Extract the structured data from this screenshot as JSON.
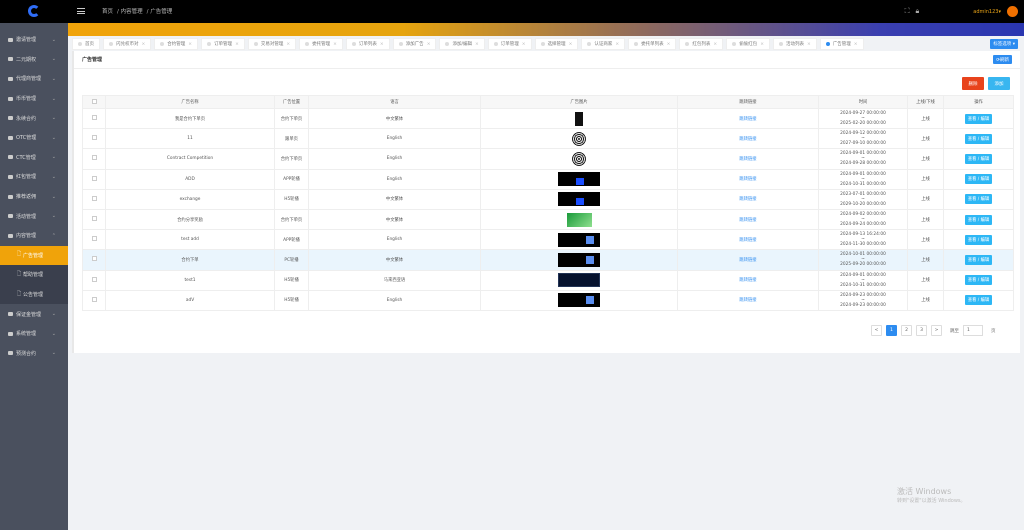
{
  "header": {
    "breadcrumb": [
      "首页",
      "/ 内容管理",
      "/ 广告管理"
    ],
    "user": "admin123▾",
    "accent": "#f0a30a"
  },
  "sidebar": {
    "items": [
      {
        "label": "邀请管理",
        "chevron": "⌄"
      },
      {
        "label": "二元期权",
        "chevron": "⌄"
      },
      {
        "label": "代理商管理",
        "chevron": "⌄"
      },
      {
        "label": "币币管理",
        "chevron": "⌄"
      },
      {
        "label": "永续合约",
        "chevron": "⌄"
      },
      {
        "label": "OTC管理",
        "chevron": "⌄"
      },
      {
        "label": "CTC管理",
        "chevron": "⌄"
      },
      {
        "label": "红包管理",
        "chevron": "⌄"
      },
      {
        "label": "推荐返佣",
        "chevron": "⌄"
      },
      {
        "label": "活动管理",
        "chevron": "⌄"
      },
      {
        "label": "内容管理",
        "chevron": "⌃"
      },
      {
        "label": "广告管理",
        "sub": true,
        "active": true
      },
      {
        "label": "帮助管理",
        "sub": true
      },
      {
        "label": "公告管理",
        "sub": true
      },
      {
        "label": "保证金管理",
        "chevron": "⌄"
      },
      {
        "label": "系统管理",
        "chevron": "⌄"
      },
      {
        "label": "预测合约",
        "chevron": "⌄"
      }
    ]
  },
  "tabs": [
    "首页",
    "闪兑权币对",
    "合约管理",
    "订单管理",
    "交易对管理",
    "委托管理",
    "订单列表",
    "添加广告",
    "添加/编辑",
    "订单管理",
    "选择管理",
    "认证商家",
    "委托单列表",
    "红包列表",
    "偷偷红包",
    "活动列表",
    "广告管理"
  ],
  "tab_options": "标签选项 ▾",
  "panel": {
    "title": "广告管理",
    "refresh": "⟳刷新",
    "delete": "删除",
    "add": "添加"
  },
  "table": {
    "headers": [
      "广告名称",
      "广告位置",
      "语言",
      "广告图片",
      "跳转链接",
      "时间",
      "上线/下线",
      "操作"
    ],
    "rows": [
      {
        "name": "我是合约下单页",
        "position": "合约下单页",
        "lang": "中文繁体",
        "img": "phone",
        "link": "跳转链接",
        "start": "2024-09-27 00:00:00",
        "end": "2025-02-20 00:00:00",
        "status": "上线",
        "op": "查看 / 编辑"
      },
      {
        "name": "11",
        "position": "跟单页",
        "lang": "English",
        "img": "circle",
        "link": "跳转链接",
        "start": "2024-09-12 00:00:00",
        "end": "2027-09-10 00:00:00",
        "status": "上线",
        "op": "查看 / 编辑"
      },
      {
        "name": "Contract Competition",
        "position": "合约下单页",
        "lang": "English",
        "img": "circle",
        "link": "跳转链接",
        "start": "2024-09-01 00:00:00",
        "end": "2024-09-28 00:00:00",
        "status": "上线",
        "op": "查看 / 编辑"
      },
      {
        "name": "ADD",
        "position": "APP轮播",
        "lang": "English",
        "img": "dark",
        "link": "跳转链接",
        "start": "2024-09-01 00:00:00",
        "end": "2024-10-31 00:00:00",
        "status": "上线",
        "op": "查看 / 编辑"
      },
      {
        "name": "exchange",
        "position": "H5轮播",
        "lang": "中文繁体",
        "img": "dark",
        "link": "跳转链接",
        "start": "2023-07-01 00:00:00",
        "end": "2029-10-20 00:00:00",
        "status": "上线",
        "op": "查看 / 编辑"
      },
      {
        "name": "合约分享奖励",
        "position": "合约下单页",
        "lang": "中文繁体",
        "img": "green",
        "link": "跳转链接",
        "start": "2024-09-02 00:00:00",
        "end": "2024-09-24 00:00:00",
        "status": "上线",
        "op": "查看 / 编辑"
      },
      {
        "name": "test add",
        "position": "APP轮播",
        "lang": "English",
        "img": "box",
        "link": "跳转链接",
        "start": "2024-09-13 16:24:00",
        "end": "2024-11-30 00:00:00",
        "status": "上线",
        "op": "查看 / 编辑"
      },
      {
        "name": "合约下单",
        "position": "PC轮播",
        "lang": "中文繁体",
        "img": "box",
        "link": "跳转链接",
        "start": "2024-10-01 00:00:00",
        "end": "2025-09-20 00:00:00",
        "status": "上线",
        "op": "查看 / 编辑",
        "highlight": true
      },
      {
        "name": "test1",
        "position": "H5轮播",
        "lang": "马来西亚语",
        "img": "blue",
        "link": "跳转链接",
        "start": "2024-09-01 00:00:00",
        "end": "2024-10-31 00:00:00",
        "status": "上线",
        "op": "查看 / 编辑"
      },
      {
        "name": "adV",
        "position": "H5轮播",
        "lang": "English",
        "img": "box",
        "link": "跳转链接",
        "start": "2024-09-23 00:00:00",
        "end": "2024-09-23 00:00:00",
        "status": "上线",
        "op": "查看 / 编辑"
      }
    ]
  },
  "pagination": {
    "prev": "<",
    "pages": [
      "1",
      "2",
      "3"
    ],
    "current": "1",
    "next": ">",
    "goto_label": "跳至",
    "goto_value": "1",
    "page_suffix": "页"
  },
  "watermark": {
    "line1": "激活 Windows",
    "line2": "转到\"设置\"以激活 Windows。"
  }
}
